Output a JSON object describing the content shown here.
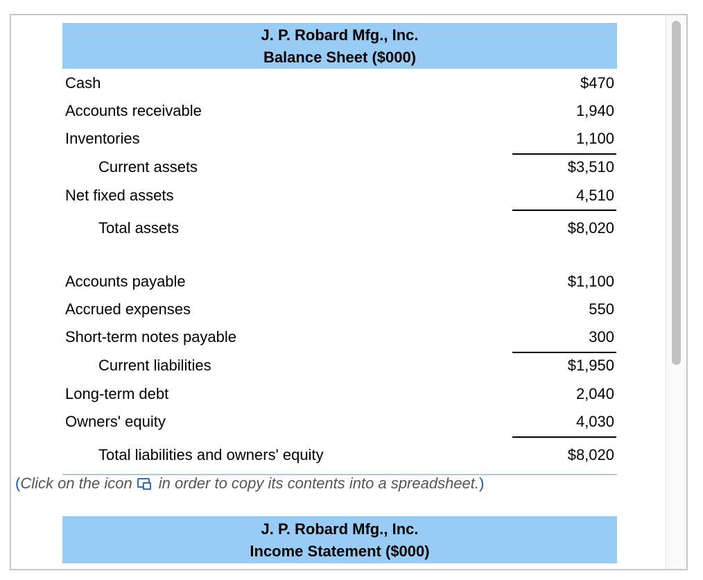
{
  "balance_sheet": {
    "company": "J. P. Robard Mfg., Inc.",
    "title": "Balance Sheet ($000)",
    "rows": [
      {
        "label": "Cash",
        "value": "$470"
      },
      {
        "label": "Accounts receivable",
        "value": "1,940"
      },
      {
        "label": "Inventories",
        "value": "1,100"
      },
      {
        "label": "Current assets",
        "value": "$3,510"
      },
      {
        "label": "Net fixed assets",
        "value": "4,510"
      },
      {
        "label": "Total assets",
        "value": "$8,020"
      },
      {
        "label": "Accounts payable",
        "value": "$1,100"
      },
      {
        "label": "Accrued expenses",
        "value": "550"
      },
      {
        "label": "Short-term notes payable",
        "value": "300"
      },
      {
        "label": "Current liabilities",
        "value": "$1,950"
      },
      {
        "label": "Long-term debt",
        "value": "2,040"
      },
      {
        "label": "Owners' equity",
        "value": "4,030"
      },
      {
        "label": "Total liabilities and owners' equity",
        "value": "$8,020"
      }
    ]
  },
  "note": {
    "open_paren": "(",
    "before_icon": "Click on the icon",
    "icon": "copy-to-spreadsheet-icon",
    "after_icon": "in order to copy its contents into a spreadsheet.",
    "close_paren": ")"
  },
  "income_statement": {
    "company": "J. P. Robard Mfg., Inc.",
    "title": "Income Statement ($000)"
  },
  "colors": {
    "header_background": "#99ccf5",
    "note_text": "#555555",
    "icon": "#2f6db5"
  }
}
